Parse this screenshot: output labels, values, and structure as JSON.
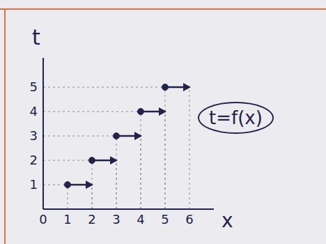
{
  "chart_data": {
    "type": "step",
    "x_label": "x",
    "y_label": "t",
    "annotation": "t=f(x)",
    "segments": [
      {
        "x": [
          1,
          2
        ],
        "t": 1
      },
      {
        "x": [
          2,
          3
        ],
        "t": 2
      },
      {
        "x": [
          3,
          4
        ],
        "t": 3
      },
      {
        "x": [
          4,
          5
        ],
        "t": 4
      },
      {
        "x": [
          5,
          6
        ],
        "t": 5
      }
    ],
    "xlim": [
      0,
      7
    ],
    "ylim": [
      0,
      6.2
    ],
    "xticks": [
      0,
      1,
      2,
      3,
      4,
      5,
      6
    ],
    "yticks": [
      1,
      2,
      3,
      4,
      5
    ],
    "color": "#22224a",
    "grid": false
  }
}
